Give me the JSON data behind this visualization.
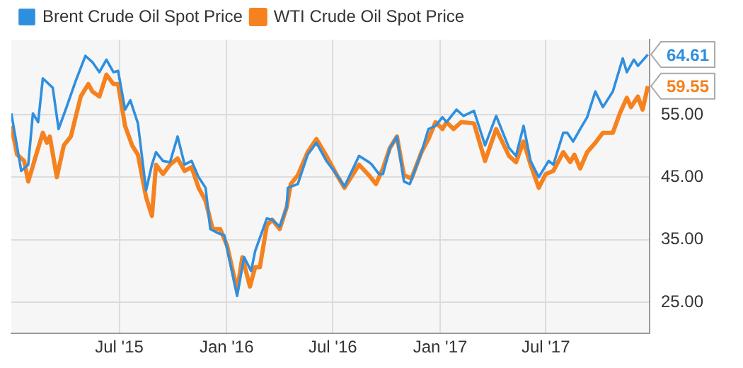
{
  "chart_data": {
    "type": "line",
    "legend": "top left",
    "grid": true,
    "marker": "none",
    "line_style": "solid",
    "xlim": [
      "2014-12-28",
      "2017-12-26"
    ],
    "xticks": [
      {
        "value": "2015-07-01",
        "label": "Jul '15"
      },
      {
        "value": "2016-01-01",
        "label": "Jan '16"
      },
      {
        "value": "2016-07-01",
        "label": "Jul '16"
      },
      {
        "value": "2017-01-01",
        "label": "Jan '17"
      },
      {
        "value": "2017-07-01",
        "label": "Jul '17"
      }
    ],
    "ylim": [
      20,
      67
    ],
    "yticks": [
      {
        "value": 25,
        "label": "25.00"
      },
      {
        "value": 35,
        "label": "35.00"
      },
      {
        "value": 45,
        "label": "45.00"
      },
      {
        "value": 55,
        "label": "55.00"
      }
    ],
    "series": [
      {
        "name": "Brent Crude Oil Spot Price",
        "color": "#2f8fdf",
        "x": [
          "2014-12-28",
          "2015-01-14",
          "2015-01-26",
          "2015-02-03",
          "2015-02-12",
          "2015-02-20",
          "2015-03-09",
          "2015-03-19",
          "2015-04-02",
          "2015-04-17",
          "2015-05-04",
          "2015-05-16",
          "2015-05-28",
          "2015-06-09",
          "2015-06-21",
          "2015-06-29",
          "2015-07-11",
          "2015-07-20",
          "2015-08-02",
          "2015-08-16",
          "2015-08-26",
          "2015-09-02",
          "2015-09-14",
          "2015-09-26",
          "2015-10-09",
          "2015-10-21",
          "2015-11-02",
          "2015-11-14",
          "2015-11-26",
          "2015-12-04",
          "2015-12-16",
          "2015-12-28",
          "2016-01-19",
          "2016-01-31",
          "2016-02-12",
          "2016-02-19",
          "2016-03-10",
          "2016-03-19",
          "2016-04-01",
          "2016-04-13",
          "2016-04-15",
          "2016-05-02",
          "2016-05-19",
          "2016-06-03",
          "2016-06-20",
          "2016-07-07",
          "2016-07-21",
          "2016-08-15",
          "2016-09-01",
          "2016-09-06",
          "2016-09-18",
          "2016-09-25",
          "2016-10-07",
          "2016-10-19",
          "2016-10-31",
          "2016-11-10",
          "2016-11-30",
          "2016-12-12",
          "2016-12-24",
          "2017-01-05",
          "2017-01-12",
          "2017-01-29",
          "2017-02-10",
          "2017-02-28",
          "2017-03-19",
          "2017-04-07",
          "2017-04-29",
          "2017-05-11",
          "2017-05-24",
          "2017-06-05",
          "2017-06-19",
          "2017-07-06",
          "2017-07-14",
          "2017-07-31",
          "2017-08-07",
          "2017-08-17",
          "2017-08-29",
          "2017-09-10",
          "2017-09-24",
          "2017-10-07",
          "2017-10-24",
          "2017-11-10",
          "2017-11-17",
          "2017-11-29",
          "2017-12-06",
          "2017-12-23"
        ],
        "values": [
          55.2,
          46,
          47,
          55.2,
          53.8,
          60.8,
          59.3,
          52.7,
          56.3,
          60.3,
          64.4,
          63.4,
          61.8,
          63.8,
          61.8,
          62,
          55.8,
          57.3,
          53.6,
          42.9,
          47,
          49,
          47.6,
          47.4,
          51.5,
          47,
          47.6,
          45,
          43.3,
          36.7,
          36.1,
          35.7,
          26,
          32.2,
          30,
          33.2,
          38.4,
          38.2,
          37.1,
          40.2,
          43.3,
          43.9,
          48.6,
          50.5,
          47.6,
          45.5,
          43.5,
          48.4,
          47.4,
          47,
          45.5,
          45.5,
          49.7,
          51.5,
          44.3,
          43.9,
          49,
          52.7,
          53.2,
          54.6,
          53.8,
          55.8,
          54.8,
          55.6,
          50.1,
          54.8,
          49.7,
          48.4,
          53.2,
          47.6,
          45,
          47.6,
          47,
          52.1,
          52.1,
          50.7,
          52.7,
          54.6,
          58.7,
          56.2,
          58.7,
          64,
          61.8,
          63.8,
          62.8,
          64.61
        ],
        "value_labels": [
          null,
          null,
          null,
          null,
          null,
          null,
          null,
          null,
          null,
          null,
          null,
          null,
          null,
          null,
          null,
          null,
          null,
          null,
          null,
          null,
          null,
          null,
          null,
          null,
          null,
          null,
          null,
          null,
          null,
          null,
          null,
          null,
          null,
          null,
          null,
          null,
          null,
          null,
          null,
          null,
          null,
          null,
          null,
          null,
          null,
          null,
          null,
          null,
          null,
          null,
          null,
          null,
          null,
          null,
          null,
          null,
          null,
          null,
          null,
          null,
          null,
          null,
          null,
          null,
          null,
          null,
          null,
          null,
          null,
          null,
          null,
          null,
          null,
          null,
          null,
          null,
          null,
          null,
          null,
          null,
          null,
          null,
          null,
          null,
          null,
          "64.61"
        ]
      },
      {
        "name": "WTI Crude Oil Spot Price",
        "color": "#f5821f",
        "x": [
          "2014-12-28",
          "2015-01-07",
          "2015-01-19",
          "2015-01-26",
          "2015-02-08",
          "2015-02-20",
          "2015-02-27",
          "2015-03-04",
          "2015-03-16",
          "2015-03-28",
          "2015-04-09",
          "2015-04-26",
          "2015-05-09",
          "2015-05-16",
          "2015-05-28",
          "2015-06-09",
          "2015-06-21",
          "2015-06-29",
          "2015-07-11",
          "2015-07-23",
          "2015-08-02",
          "2015-08-16",
          "2015-08-26",
          "2015-09-02",
          "2015-09-14",
          "2015-09-26",
          "2015-10-09",
          "2015-10-21",
          "2015-11-02",
          "2015-11-14",
          "2015-11-26",
          "2015-12-08",
          "2015-12-21",
          "2016-01-02",
          "2016-01-19",
          "2016-01-28",
          "2016-02-10",
          "2016-02-19",
          "2016-02-27",
          "2016-03-10",
          "2016-03-19",
          "2016-04-01",
          "2016-04-13",
          "2016-04-20",
          "2016-05-02",
          "2016-05-19",
          "2016-06-03",
          "2016-06-20",
          "2016-07-07",
          "2016-07-21",
          "2016-08-15",
          "2016-09-01",
          "2016-09-13",
          "2016-09-25",
          "2016-10-07",
          "2016-10-19",
          "2016-10-31",
          "2016-11-13",
          "2016-11-30",
          "2016-12-12",
          "2016-12-24",
          "2017-01-05",
          "2017-01-12",
          "2017-01-24",
          "2017-02-06",
          "2017-02-28",
          "2017-03-19",
          "2017-04-07",
          "2017-04-29",
          "2017-05-11",
          "2017-05-24",
          "2017-06-05",
          "2017-06-19",
          "2017-07-01",
          "2017-07-14",
          "2017-07-31",
          "2017-08-12",
          "2017-08-19",
          "2017-08-29",
          "2017-09-10",
          "2017-09-24",
          "2017-10-07",
          "2017-10-24",
          "2017-11-05",
          "2017-11-17",
          "2017-11-24",
          "2017-12-06",
          "2017-12-14",
          "2017-12-23"
        ],
        "values": [
          53.2,
          48.6,
          47.6,
          44.3,
          48.4,
          52.1,
          50.5,
          51.5,
          45,
          50.1,
          51.5,
          57.9,
          59.9,
          58.7,
          57.9,
          61.4,
          59.9,
          59.9,
          53.2,
          50.1,
          48.6,
          41.8,
          38.8,
          47,
          45.5,
          47,
          48,
          46,
          46.6,
          43.3,
          41.2,
          36.7,
          36.7,
          34,
          26.9,
          32.2,
          27.5,
          30.6,
          30.6,
          37.3,
          38.2,
          36.7,
          40.2,
          43.9,
          45.3,
          49,
          51.1,
          48.4,
          45.5,
          43.3,
          47,
          45.3,
          43.9,
          46.4,
          49.7,
          51.5,
          45.3,
          44.8,
          49,
          51.1,
          53.8,
          52.7,
          53.8,
          52.7,
          53.8,
          53.6,
          47.6,
          52.7,
          48.4,
          47.4,
          50.7,
          47,
          43.3,
          45.5,
          46,
          49,
          47.4,
          48.6,
          46.4,
          49,
          50.5,
          52.1,
          52.1,
          55.2,
          57.7,
          56.2,
          57.9,
          55.8,
          59.55
        ],
        "value_labels": [
          null,
          null,
          null,
          null,
          null,
          null,
          null,
          null,
          null,
          null,
          null,
          null,
          null,
          null,
          null,
          null,
          null,
          null,
          null,
          null,
          null,
          null,
          null,
          null,
          null,
          null,
          null,
          null,
          null,
          null,
          null,
          null,
          null,
          null,
          null,
          null,
          null,
          null,
          null,
          null,
          null,
          null,
          null,
          null,
          null,
          null,
          null,
          null,
          null,
          null,
          null,
          null,
          null,
          null,
          null,
          null,
          null,
          null,
          null,
          null,
          null,
          null,
          null,
          null,
          null,
          null,
          null,
          null,
          null,
          null,
          null,
          null,
          null,
          null,
          null,
          null,
          null,
          null,
          null,
          null,
          null,
          null,
          null,
          null,
          null,
          null,
          null,
          null,
          "59.55"
        ]
      }
    ]
  }
}
